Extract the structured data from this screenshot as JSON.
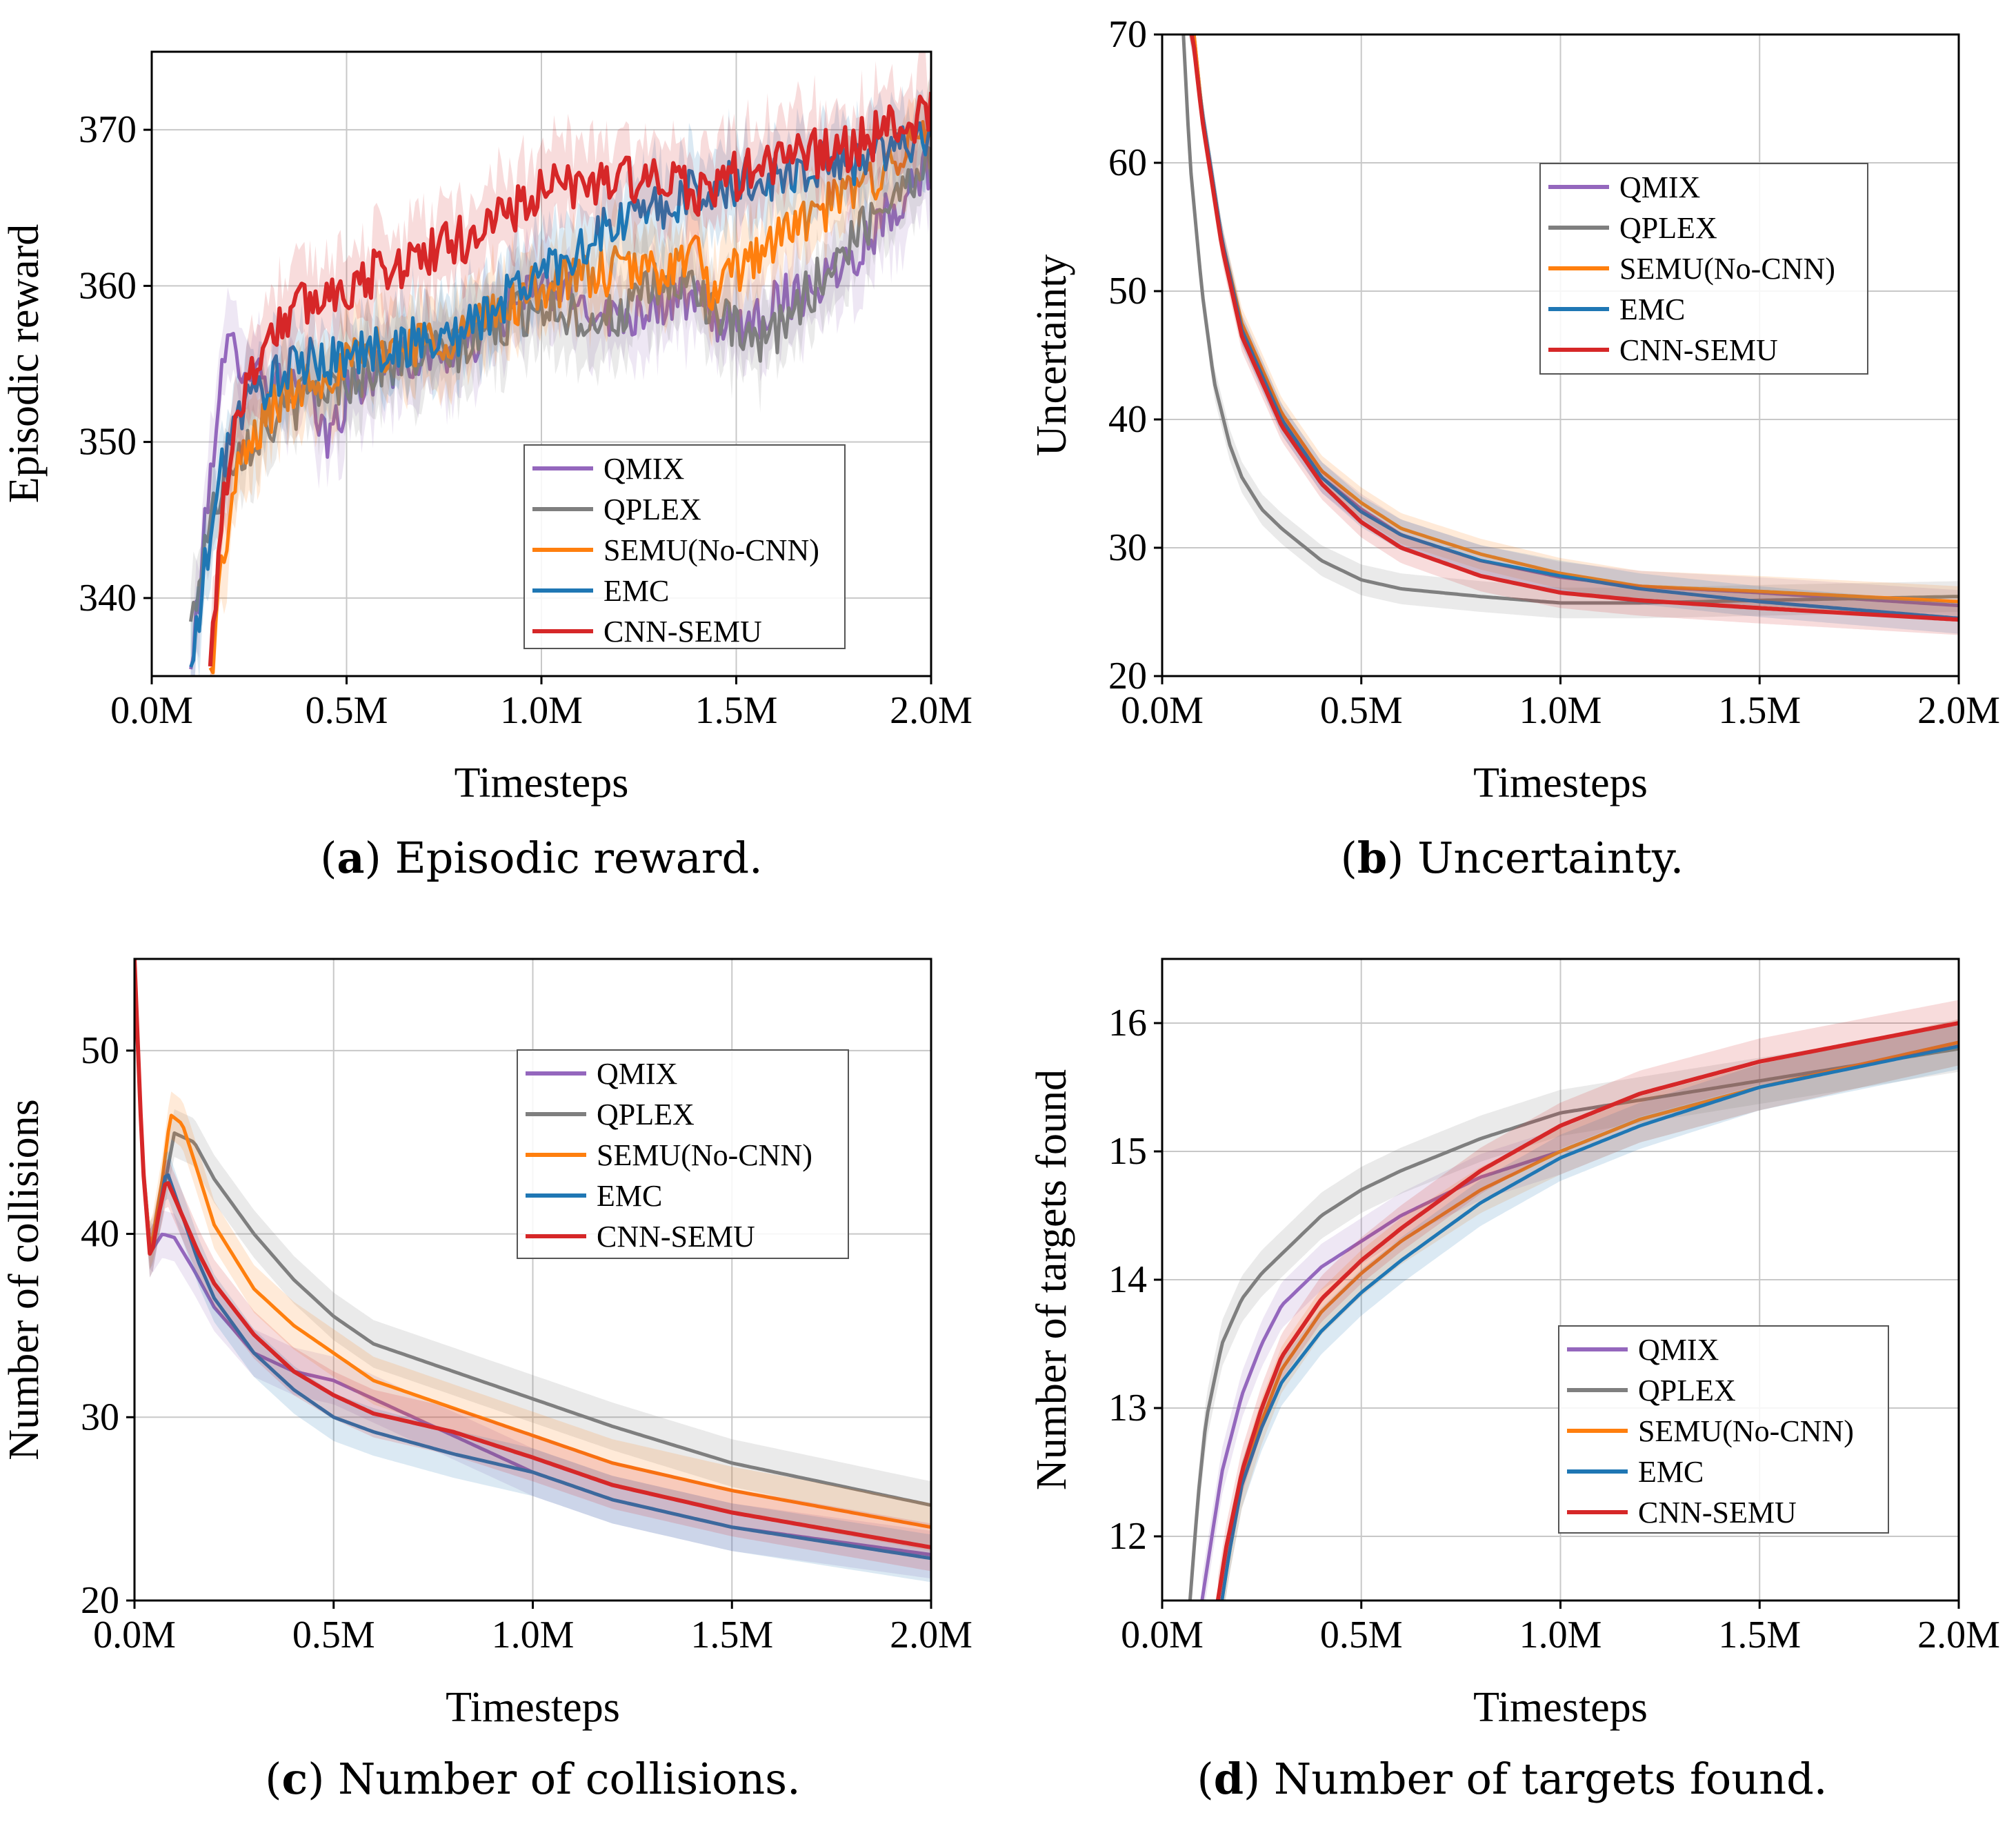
{
  "colors": {
    "QMIX": "#9467bd",
    "QPLEX": "#7f7f7f",
    "SEMU(No-CNN)": "#ff7f0e",
    "EMC": "#1f77b4",
    "CNN-SEMU": "#d62728"
  },
  "chart_data": [
    {
      "id": "a",
      "type": "line",
      "caption_letter": "a",
      "caption_text": "Episodic reward.",
      "xlabel": "Timesteps",
      "ylabel": "Episodic reward",
      "xlim": [
        0,
        2.0
      ],
      "ylim": [
        335,
        375
      ],
      "xticks": [
        0,
        0.5,
        1.0,
        1.5,
        2.0
      ],
      "xtick_labels": [
        "0.0M",
        "0.5M",
        "1.0M",
        "1.5M",
        "2.0M"
      ],
      "yticks": [
        340,
        350,
        360,
        370
      ],
      "ytick_labels": [
        "340",
        "350",
        "360",
        "370"
      ],
      "legend_position": "lower-right",
      "noise": 1.6,
      "band": 2.5,
      "series": [
        {
          "name": "QMIX",
          "x": [
            0.1,
            0.14,
            0.17,
            0.2,
            0.25,
            0.3,
            0.4,
            0.45,
            0.5,
            0.6,
            0.8,
            1.0,
            1.1,
            1.2,
            1.3,
            1.4,
            1.5,
            1.6,
            1.7,
            1.8,
            1.9,
            2.0
          ],
          "y": [
            335,
            345,
            353,
            356,
            355,
            354,
            353,
            350,
            353,
            355,
            356,
            360,
            359,
            358,
            359,
            359,
            357,
            359,
            360,
            362,
            365,
            368
          ]
        },
        {
          "name": "QPLEX",
          "x": [
            0.1,
            0.14,
            0.2,
            0.3,
            0.4,
            0.6,
            0.8,
            1.0,
            1.1,
            1.2,
            1.3,
            1.4,
            1.45,
            1.5,
            1.55,
            1.6,
            1.7,
            1.8,
            1.9,
            2.0
          ],
          "y": [
            338,
            344,
            349,
            351,
            353,
            355,
            356,
            359,
            358,
            358,
            360,
            360,
            358,
            357,
            356,
            357,
            360,
            363,
            366,
            368
          ]
        },
        {
          "name": "SEMU(No-CNN)",
          "x": [
            0.15,
            0.18,
            0.22,
            0.3,
            0.4,
            0.6,
            0.8,
            1.0,
            1.2,
            1.3,
            1.4,
            1.45,
            1.5,
            1.6,
            1.8,
            2.0
          ],
          "y": [
            335,
            342,
            348,
            352,
            354,
            356,
            357,
            360,
            361,
            361,
            362,
            359,
            361,
            363,
            366,
            370
          ]
        },
        {
          "name": "EMC",
          "x": [
            0.1,
            0.15,
            0.2,
            0.3,
            0.4,
            0.6,
            0.8,
            1.0,
            1.2,
            1.4,
            1.6,
            1.8,
            2.0
          ],
          "y": [
            335,
            344,
            351,
            354,
            355,
            356,
            357,
            361,
            364,
            366,
            367,
            368,
            370
          ]
        },
        {
          "name": "CNN-SEMU",
          "x": [
            0.15,
            0.18,
            0.22,
            0.3,
            0.4,
            0.5,
            0.6,
            0.8,
            1.0,
            1.2,
            1.4,
            1.6,
            1.8,
            2.0
          ],
          "y": [
            335,
            346,
            352,
            357,
            359,
            360,
            361,
            363,
            366,
            367,
            366,
            368,
            369,
            371
          ]
        }
      ]
    },
    {
      "id": "b",
      "type": "line",
      "caption_letter": "b",
      "caption_text": "Uncertainty.",
      "xlabel": "Timesteps",
      "ylabel": "Uncertainty",
      "xlim": [
        0,
        2.0
      ],
      "ylim": [
        20,
        70
      ],
      "xticks": [
        0,
        0.5,
        1.0,
        1.5,
        2.0
      ],
      "xtick_labels": [
        "0.0M",
        "0.5M",
        "1.0M",
        "1.5M",
        "2.0M"
      ],
      "yticks": [
        20,
        30,
        40,
        50,
        60,
        70
      ],
      "ytick_labels": [
        "20",
        "30",
        "40",
        "50",
        "60",
        "70"
      ],
      "legend_position": "upper-center",
      "noise": 0,
      "band": 1.2,
      "series": [
        {
          "name": "QMIX",
          "x": [
            0.05,
            0.08,
            0.1,
            0.15,
            0.2,
            0.3,
            0.4,
            0.5,
            0.6,
            0.8,
            1.0,
            1.2,
            1.5,
            2.0
          ],
          "y": [
            74,
            70,
            64,
            54,
            47,
            40,
            35.5,
            33,
            31,
            29,
            27.7,
            27,
            26.5,
            25.5
          ]
        },
        {
          "name": "QPLEX",
          "x": [
            0.05,
            0.07,
            0.1,
            0.13,
            0.17,
            0.2,
            0.25,
            0.3,
            0.4,
            0.5,
            0.6,
            0.8,
            1.0,
            1.2,
            1.5,
            2.0
          ],
          "y": [
            72,
            60,
            50,
            43,
            38,
            35.5,
            33,
            31.5,
            29,
            27.5,
            26.8,
            26.2,
            25.7,
            25.7,
            25.9,
            26.2
          ]
        },
        {
          "name": "SEMU(No-CNN)",
          "x": [
            0.05,
            0.08,
            0.1,
            0.15,
            0.2,
            0.3,
            0.4,
            0.5,
            0.6,
            0.8,
            1.0,
            1.2,
            1.5,
            2.0
          ],
          "y": [
            75,
            70,
            64,
            54,
            47.5,
            40.5,
            36,
            33.5,
            31.5,
            29.5,
            28,
            27,
            26.6,
            25.8
          ]
        },
        {
          "name": "EMC",
          "x": [
            0.05,
            0.08,
            0.1,
            0.15,
            0.2,
            0.3,
            0.4,
            0.5,
            0.6,
            0.8,
            1.0,
            1.2,
            1.5,
            2.0
          ],
          "y": [
            74,
            69,
            64,
            54,
            47,
            40,
            35.5,
            32.8,
            31,
            29,
            27.8,
            26.8,
            25.8,
            24.5
          ]
        },
        {
          "name": "CNN-SEMU",
          "x": [
            0.05,
            0.08,
            0.1,
            0.15,
            0.2,
            0.3,
            0.4,
            0.5,
            0.6,
            0.8,
            1.0,
            1.2,
            1.5,
            2.0
          ],
          "y": [
            74,
            69,
            63.5,
            53.5,
            46.5,
            39.5,
            35,
            32,
            30,
            27.8,
            26.5,
            25.9,
            25.3,
            24.4
          ]
        }
      ]
    },
    {
      "id": "c",
      "type": "line",
      "caption_letter": "c",
      "caption_text": "Number of collisions.",
      "xlabel": "Timesteps",
      "ylabel": "Number of collisions",
      "xlim": [
        0,
        2.0
      ],
      "ylim": [
        20,
        55
      ],
      "xticks": [
        0,
        0.5,
        1.0,
        1.5,
        2.0
      ],
      "xtick_labels": [
        "0.0M",
        "0.5M",
        "1.0M",
        "1.5M",
        "2.0M"
      ],
      "yticks": [
        20,
        30,
        40,
        50
      ],
      "ytick_labels": [
        "20",
        "30",
        "40",
        "50"
      ],
      "legend_position": "upper-right",
      "noise": 0,
      "band": 1.3,
      "series": [
        {
          "name": "QMIX",
          "x": [
            0,
            0.02,
            0.04,
            0.07,
            0.1,
            0.15,
            0.2,
            0.3,
            0.4,
            0.5,
            0.6,
            0.8,
            1.0,
            1.2,
            1.5,
            2.0
          ],
          "y": [
            55,
            44,
            39,
            40,
            39.8,
            38,
            36,
            33.5,
            32.5,
            32,
            31,
            29,
            27,
            25.5,
            24,
            22.5
          ]
        },
        {
          "name": "QPLEX",
          "x": [
            0,
            0.02,
            0.04,
            0.07,
            0.1,
            0.15,
            0.2,
            0.3,
            0.4,
            0.5,
            0.6,
            0.8,
            1.0,
            1.2,
            1.5,
            2.0
          ],
          "y": [
            55,
            44,
            39,
            42,
            45.5,
            45,
            43,
            40,
            37.5,
            35.5,
            34,
            32.5,
            31,
            29.5,
            27.5,
            25.2
          ]
        },
        {
          "name": "SEMU(No-CNN)",
          "x": [
            0,
            0.02,
            0.04,
            0.07,
            0.09,
            0.12,
            0.15,
            0.2,
            0.3,
            0.4,
            0.5,
            0.6,
            0.8,
            1.0,
            1.2,
            1.5,
            2.0
          ],
          "y": [
            55,
            44,
            39,
            43,
            46.5,
            46,
            44,
            40.5,
            37,
            35,
            33.5,
            32,
            30.5,
            29,
            27.5,
            26,
            24
          ]
        },
        {
          "name": "EMC",
          "x": [
            0,
            0.02,
            0.04,
            0.06,
            0.08,
            0.12,
            0.16,
            0.2,
            0.3,
            0.4,
            0.5,
            0.6,
            0.8,
            1.0,
            1.2,
            1.5,
            2.0
          ],
          "y": [
            55,
            44,
            38.5,
            41,
            43.5,
            41,
            38.5,
            36.5,
            33.5,
            31.5,
            30,
            29.2,
            28,
            27,
            25.5,
            24,
            22.3
          ]
        },
        {
          "name": "CNN-SEMU",
          "x": [
            0,
            0.02,
            0.04,
            0.06,
            0.08,
            0.12,
            0.16,
            0.2,
            0.3,
            0.4,
            0.5,
            0.6,
            0.8,
            1.0,
            1.2,
            1.5,
            2.0
          ],
          "y": [
            55,
            44,
            38.5,
            41,
            43,
            41,
            39,
            37.3,
            34.5,
            32.5,
            31.2,
            30.2,
            29.2,
            27.8,
            26.3,
            24.8,
            22.9
          ]
        }
      ]
    },
    {
      "id": "d",
      "type": "line",
      "caption_letter": "d",
      "caption_text": "Number of targets found.",
      "xlabel": "Timesteps",
      "ylabel": "Number of targets found",
      "xlim": [
        0,
        2.0
      ],
      "ylim": [
        11.5,
        16.5
      ],
      "xticks": [
        0,
        0.5,
        1.0,
        1.5,
        2.0
      ],
      "xtick_labels": [
        "0.0M",
        "0.5M",
        "1.0M",
        "1.5M",
        "2.0M"
      ],
      "yticks": [
        12,
        13,
        14,
        15,
        16
      ],
      "ytick_labels": [
        "12",
        "13",
        "14",
        "15",
        "16"
      ],
      "legend_position": "lower-right",
      "noise": 0,
      "band": 0.18,
      "series": [
        {
          "name": "QMIX",
          "x": [
            0.1,
            0.12,
            0.15,
            0.2,
            0.25,
            0.3,
            0.4,
            0.5,
            0.6,
            0.8,
            1.0,
            1.2,
            1.5,
            2.0
          ],
          "y": [
            11.5,
            11.9,
            12.5,
            13.1,
            13.5,
            13.8,
            14.1,
            14.3,
            14.5,
            14.8,
            15.0,
            15.25,
            15.5,
            15.85
          ]
        },
        {
          "name": "QPLEX",
          "x": [
            0.07,
            0.09,
            0.11,
            0.15,
            0.2,
            0.25,
            0.3,
            0.4,
            0.5,
            0.6,
            0.8,
            1.0,
            1.2,
            1.5,
            2.0
          ],
          "y": [
            11.5,
            12.3,
            12.9,
            13.5,
            13.85,
            14.05,
            14.2,
            14.5,
            14.7,
            14.85,
            15.1,
            15.3,
            15.4,
            15.55,
            15.8
          ]
        },
        {
          "name": "SEMU(No-CNN)",
          "x": [
            0.15,
            0.17,
            0.2,
            0.25,
            0.3,
            0.4,
            0.5,
            0.6,
            0.8,
            1.0,
            1.2,
            1.5,
            2.0
          ],
          "y": [
            11.5,
            11.9,
            12.4,
            12.9,
            13.3,
            13.75,
            14.05,
            14.3,
            14.7,
            15.0,
            15.25,
            15.5,
            15.85
          ]
        },
        {
          "name": "EMC",
          "x": [
            0.15,
            0.17,
            0.2,
            0.25,
            0.3,
            0.4,
            0.5,
            0.6,
            0.8,
            1.0,
            1.2,
            1.5,
            2.0
          ],
          "y": [
            11.5,
            11.9,
            12.4,
            12.85,
            13.2,
            13.6,
            13.9,
            14.15,
            14.6,
            14.95,
            15.2,
            15.5,
            15.82
          ]
        },
        {
          "name": "CNN-SEMU",
          "x": [
            0.14,
            0.16,
            0.2,
            0.25,
            0.3,
            0.4,
            0.5,
            0.6,
            0.8,
            1.0,
            1.2,
            1.5,
            2.0
          ],
          "y": [
            11.5,
            11.9,
            12.5,
            13.0,
            13.4,
            13.85,
            14.15,
            14.4,
            14.85,
            15.2,
            15.45,
            15.7,
            16.0
          ]
        }
      ]
    }
  ]
}
